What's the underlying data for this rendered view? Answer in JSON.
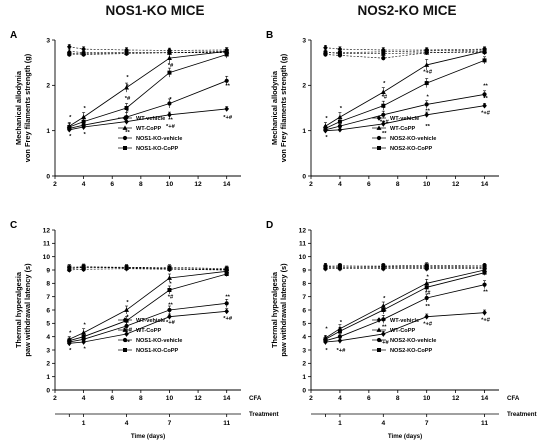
{
  "headers": {
    "left": "NOS1-KO MICE",
    "right": "NOS2-KO MICE"
  },
  "chart_data": [
    {
      "panel": "A",
      "type": "line",
      "ylabel": [
        "Mechanical allodynia",
        "von Frey filaments strength (g)"
      ],
      "xlim": [
        2,
        15
      ],
      "ylim": [
        0,
        3
      ],
      "xticks": [
        2,
        4,
        6,
        8,
        10,
        12,
        14
      ],
      "yticks": [
        0,
        1,
        2,
        3
      ],
      "x": [
        3,
        4,
        7,
        10,
        14
      ],
      "series": [
        {
          "name": "WT-vehicle",
          "marker": "diamond",
          "dashed": true,
          "values": [
            2.85,
            2.8,
            2.78,
            2.77,
            2.78
          ],
          "err": [
            0.05,
            0.05,
            0.05,
            0.05,
            0.05
          ]
        },
        {
          "name": "WT-CoPP",
          "marker": "triangle",
          "dashed": true,
          "values": [
            2.75,
            2.72,
            2.72,
            2.72,
            2.74
          ],
          "err": [
            0.05,
            0.05,
            0.05,
            0.05,
            0.05
          ]
        },
        {
          "name": "NOS1-KO-vehicle",
          "marker": "circle",
          "dashed": true,
          "values": [
            2.68,
            2.68,
            2.7,
            2.72,
            2.72
          ],
          "err": [
            0.05,
            0.05,
            0.05,
            0.05,
            0.05
          ]
        },
        {
          "name": "NOS1-KO-CoPP",
          "marker": "square",
          "dashed": true,
          "values": [
            2.7,
            2.7,
            2.72,
            2.72,
            2.75
          ],
          "err": [
            0.05,
            0.05,
            0.05,
            0.05,
            0.05
          ]
        },
        {
          "name": "",
          "marker": "triangle",
          "dashed": false,
          "values": [
            1.1,
            1.3,
            1.95,
            2.6,
            2.75
          ],
          "err": [
            0.08,
            0.1,
            0.1,
            0.12,
            0.08
          ]
        },
        {
          "name": "",
          "marker": "square",
          "dashed": false,
          "values": [
            1.08,
            1.2,
            1.5,
            2.28,
            2.68
          ],
          "err": [
            0.08,
            0.1,
            0.1,
            0.1,
            0.08
          ]
        },
        {
          "name": "",
          "marker": "circle",
          "dashed": false,
          "values": [
            1.05,
            1.12,
            1.3,
            1.6,
            2.1
          ],
          "err": [
            0.06,
            0.08,
            0.1,
            0.1,
            0.1
          ]
        },
        {
          "name": "",
          "marker": "diamond",
          "dashed": false,
          "values": [
            1.02,
            1.08,
            1.2,
            1.35,
            1.48
          ],
          "err": [
            0.05,
            0.06,
            0.06,
            0.06,
            0.05
          ]
        }
      ],
      "annotations": [
        {
          "x": 3,
          "y": 1.3,
          "text": "*"
        },
        {
          "x": 3,
          "y": 0.88,
          "text": "*"
        },
        {
          "x": 4,
          "y": 1.5,
          "text": "*"
        },
        {
          "x": 4,
          "y": 0.93,
          "text": "*"
        },
        {
          "x": 7,
          "y": 2.18,
          "text": "*"
        },
        {
          "x": 7,
          "y": 1.98,
          "text": "*"
        },
        {
          "x": 7,
          "y": 1.72,
          "text": "*#"
        },
        {
          "x": 7,
          "y": 1.42,
          "text": "*"
        },
        {
          "x": 7,
          "y": 0.97,
          "text": "**"
        },
        {
          "x": 10,
          "y": 2.45,
          "text": "*#"
        },
        {
          "x": 10,
          "y": 1.7,
          "text": "*"
        },
        {
          "x": 10,
          "y": 1.25,
          "text": "**"
        },
        {
          "x": 10,
          "y": 1.1,
          "text": "*+#"
        },
        {
          "x": 14,
          "y": 2.0,
          "text": "**"
        },
        {
          "x": 14,
          "y": 1.3,
          "text": "*+#"
        }
      ]
    },
    {
      "panel": "B",
      "type": "line",
      "ylabel": [
        "Mechanical allodynia",
        "von Frey filaments strength (g)"
      ],
      "xlim": [
        2,
        15
      ],
      "ylim": [
        0,
        3
      ],
      "xticks": [
        2,
        4,
        6,
        8,
        10,
        12,
        14
      ],
      "yticks": [
        0,
        1,
        2,
        3
      ],
      "x": [
        3,
        4,
        7,
        10,
        14
      ],
      "series": [
        {
          "name": "WT-vehicle",
          "marker": "diamond",
          "dashed": true,
          "values": [
            2.83,
            2.8,
            2.78,
            2.78,
            2.8
          ],
          "err": [
            0.05,
            0.05,
            0.05,
            0.05,
            0.05
          ]
        },
        {
          "name": "WT-CoPP",
          "marker": "triangle",
          "dashed": true,
          "values": [
            2.73,
            2.7,
            2.7,
            2.72,
            2.75
          ],
          "err": [
            0.05,
            0.05,
            0.05,
            0.05,
            0.05
          ]
        },
        {
          "name": "NOS2-KO-vehicle",
          "marker": "circle",
          "dashed": true,
          "values": [
            2.68,
            2.66,
            2.6,
            2.72,
            2.73
          ],
          "err": [
            0.05,
            0.05,
            0.05,
            0.05,
            0.05
          ]
        },
        {
          "name": "NOS2-KO-CoPP",
          "marker": "square",
          "dashed": true,
          "values": [
            2.72,
            2.72,
            2.74,
            2.76,
            2.78
          ],
          "err": [
            0.05,
            0.05,
            0.05,
            0.05,
            0.05
          ]
        },
        {
          "name": "",
          "marker": "triangle",
          "dashed": false,
          "values": [
            1.1,
            1.3,
            1.85,
            2.45,
            2.75
          ],
          "err": [
            0.08,
            0.1,
            0.1,
            0.12,
            0.08
          ]
        },
        {
          "name": "",
          "marker": "square",
          "dashed": false,
          "values": [
            1.05,
            1.2,
            1.55,
            2.05,
            2.55
          ],
          "err": [
            0.06,
            0.08,
            0.1,
            0.1,
            0.08
          ]
        },
        {
          "name": "",
          "marker": "circle",
          "dashed": false,
          "values": [
            1.02,
            1.1,
            1.35,
            1.58,
            1.8
          ],
          "err": [
            0.05,
            0.06,
            0.08,
            0.08,
            0.08
          ]
        },
        {
          "name": "",
          "marker": "diamond",
          "dashed": false,
          "values": [
            1.0,
            1.02,
            1.15,
            1.35,
            1.55
          ],
          "err": [
            0.05,
            0.05,
            0.06,
            0.06,
            0.05
          ]
        }
      ],
      "annotations": [
        {
          "x": 3,
          "y": 1.28,
          "text": "*"
        },
        {
          "x": 3,
          "y": 0.86,
          "text": "*"
        },
        {
          "x": 4,
          "y": 1.5,
          "text": "*"
        },
        {
          "x": 7,
          "y": 2.05,
          "text": "*"
        },
        {
          "x": 7,
          "y": 1.75,
          "text": "*#"
        },
        {
          "x": 7,
          "y": 1.5,
          "text": "*"
        },
        {
          "x": 7,
          "y": 1.2,
          "text": "*+#"
        },
        {
          "x": 7,
          "y": 0.95,
          "text": "**"
        },
        {
          "x": 10,
          "y": 2.3,
          "text": "*+#"
        },
        {
          "x": 10,
          "y": 1.75,
          "text": "*"
        },
        {
          "x": 10,
          "y": 1.45,
          "text": "**"
        },
        {
          "x": 10,
          "y": 1.1,
          "text": "**"
        },
        {
          "x": 14,
          "y": 2.0,
          "text": "**"
        },
        {
          "x": 14,
          "y": 1.72,
          "text": "**"
        },
        {
          "x": 14,
          "y": 1.4,
          "text": "*+#"
        }
      ]
    },
    {
      "panel": "C",
      "type": "line",
      "ylabel": [
        "Thermal hyperalgesia",
        "paw withdrawal latency (s)"
      ],
      "xlim": [
        2,
        15
      ],
      "ylim": [
        0,
        12
      ],
      "xticks": [
        2,
        4,
        6,
        8,
        10,
        12,
        14
      ],
      "yticks": [
        0,
        1,
        2,
        3,
        4,
        5,
        6,
        7,
        8,
        9,
        10,
        11,
        12
      ],
      "x": [
        3,
        4,
        7,
        10,
        14
      ],
      "series": [
        {
          "name": "WT-vehicle",
          "marker": "diamond",
          "dashed": true,
          "values": [
            9.2,
            9.2,
            9.2,
            9.1,
            9.0
          ],
          "err": [
            0.2,
            0.2,
            0.2,
            0.2,
            0.2
          ]
        },
        {
          "name": "WT-CoPP",
          "marker": "triangle",
          "dashed": true,
          "values": [
            9.1,
            9.2,
            9.15,
            9.1,
            9.05
          ],
          "err": [
            0.2,
            0.2,
            0.2,
            0.2,
            0.2
          ]
        },
        {
          "name": "NOS1-KO-vehicle",
          "marker": "circle",
          "dashed": true,
          "values": [
            9.0,
            9.05,
            9.1,
            9.05,
            9.0
          ],
          "err": [
            0.2,
            0.2,
            0.2,
            0.2,
            0.2
          ]
        },
        {
          "name": "NOS1-KO-CoPP",
          "marker": "square",
          "dashed": true,
          "values": [
            9.2,
            9.25,
            9.2,
            9.2,
            9.1
          ],
          "err": [
            0.2,
            0.2,
            0.2,
            0.2,
            0.2
          ]
        },
        {
          "name": "",
          "marker": "triangle",
          "dashed": false,
          "values": [
            3.8,
            4.3,
            6.0,
            8.4,
            8.9
          ],
          "err": [
            0.2,
            0.3,
            0.3,
            0.3,
            0.2
          ]
        },
        {
          "name": "",
          "marker": "square",
          "dashed": false,
          "values": [
            3.7,
            4.0,
            5.2,
            7.5,
            8.7
          ],
          "err": [
            0.2,
            0.3,
            0.3,
            0.3,
            0.2
          ]
        },
        {
          "name": "",
          "marker": "circle",
          "dashed": false,
          "values": [
            3.6,
            3.8,
            4.8,
            6.0,
            6.5
          ],
          "err": [
            0.2,
            0.2,
            0.3,
            0.3,
            0.3
          ]
        },
        {
          "name": "",
          "marker": "diamond",
          "dashed": false,
          "values": [
            3.5,
            3.6,
            4.2,
            5.5,
            5.9
          ],
          "err": [
            0.2,
            0.2,
            0.2,
            0.2,
            0.2
          ]
        }
      ],
      "annotations": [
        {
          "x": 3,
          "y": 4.3,
          "text": "*"
        },
        {
          "x": 3,
          "y": 3.0,
          "text": "*"
        },
        {
          "x": 4,
          "y": 4.9,
          "text": "*"
        },
        {
          "x": 4,
          "y": 3.1,
          "text": "*"
        },
        {
          "x": 7,
          "y": 6.6,
          "text": "*"
        },
        {
          "x": 7,
          "y": 5.5,
          "text": "*"
        },
        {
          "x": 7,
          "y": 4.55,
          "text": "*+#"
        },
        {
          "x": 7,
          "y": 3.6,
          "text": "**"
        },
        {
          "x": 10,
          "y": 8.0,
          "text": "*"
        },
        {
          "x": 10,
          "y": 7.0,
          "text": "*#"
        },
        {
          "x": 10,
          "y": 6.4,
          "text": "**"
        },
        {
          "x": 10,
          "y": 5.1,
          "text": "*+#"
        },
        {
          "x": 14,
          "y": 7.0,
          "text": "**"
        },
        {
          "x": 14,
          "y": 5.4,
          "text": "*+#"
        }
      ]
    },
    {
      "panel": "D",
      "type": "line",
      "ylabel": [
        "Thermal hyperalgesia",
        "paw withdrawal latency (s)"
      ],
      "xlim": [
        2,
        15
      ],
      "ylim": [
        0,
        12
      ],
      "xticks": [
        2,
        4,
        6,
        8,
        10,
        12,
        14
      ],
      "yticks": [
        0,
        1,
        2,
        3,
        4,
        5,
        6,
        7,
        8,
        9,
        10,
        11,
        12
      ],
      "x": [
        3,
        4,
        7,
        10,
        14
      ],
      "series": [
        {
          "name": "WT-vehicle",
          "marker": "diamond",
          "dashed": true,
          "values": [
            9.3,
            9.3,
            9.25,
            9.25,
            9.3
          ],
          "err": [
            0.2,
            0.2,
            0.2,
            0.2,
            0.2
          ]
        },
        {
          "name": "WT-CoPP",
          "marker": "triangle",
          "dashed": true,
          "values": [
            9.2,
            9.2,
            9.2,
            9.2,
            9.2
          ],
          "err": [
            0.2,
            0.2,
            0.2,
            0.2,
            0.2
          ]
        },
        {
          "name": "NOS2-KO-vehicle",
          "marker": "circle",
          "dashed": true,
          "values": [
            9.1,
            9.1,
            9.1,
            9.1,
            9.1
          ],
          "err": [
            0.2,
            0.2,
            0.2,
            0.2,
            0.2
          ]
        },
        {
          "name": "NOS2-KO-CoPP",
          "marker": "square",
          "dashed": true,
          "values": [
            9.25,
            9.3,
            9.3,
            9.35,
            9.3
          ],
          "err": [
            0.2,
            0.2,
            0.2,
            0.2,
            0.2
          ]
        },
        {
          "name": "",
          "marker": "triangle",
          "dashed": false,
          "values": [
            3.9,
            4.6,
            6.3,
            8.0,
            9.0
          ],
          "err": [
            0.2,
            0.3,
            0.3,
            0.3,
            0.2
          ]
        },
        {
          "name": "",
          "marker": "square",
          "dashed": false,
          "values": [
            3.8,
            4.4,
            6.0,
            7.7,
            8.8
          ],
          "err": [
            0.2,
            0.3,
            0.3,
            0.3,
            0.2
          ]
        },
        {
          "name": "",
          "marker": "circle",
          "dashed": false,
          "values": [
            3.7,
            4.0,
            5.3,
            6.9,
            7.9
          ],
          "err": [
            0.2,
            0.2,
            0.3,
            0.3,
            0.3
          ]
        },
        {
          "name": "",
          "marker": "diamond",
          "dashed": false,
          "values": [
            3.6,
            3.7,
            4.2,
            5.5,
            5.8
          ],
          "err": [
            0.2,
            0.2,
            0.2,
            0.2,
            0.2
          ]
        }
      ],
      "annotations": [
        {
          "x": 3,
          "y": 4.6,
          "text": "*"
        },
        {
          "x": 3,
          "y": 3.0,
          "text": "*"
        },
        {
          "x": 4,
          "y": 5.1,
          "text": "*"
        },
        {
          "x": 4,
          "y": 3.0,
          "text": "*+#"
        },
        {
          "x": 7,
          "y": 6.9,
          "text": "*"
        },
        {
          "x": 7,
          "y": 5.9,
          "text": "**"
        },
        {
          "x": 7,
          "y": 4.75,
          "text": "**"
        },
        {
          "x": 7,
          "y": 3.6,
          "text": "*+#"
        },
        {
          "x": 10,
          "y": 8.5,
          "text": "*"
        },
        {
          "x": 10,
          "y": 7.3,
          "text": "*#"
        },
        {
          "x": 10,
          "y": 6.3,
          "text": "**"
        },
        {
          "x": 10,
          "y": 5.0,
          "text": "*+#"
        },
        {
          "x": 14,
          "y": 7.4,
          "text": "**"
        },
        {
          "x": 14,
          "y": 5.3,
          "text": "*+#"
        }
      ]
    }
  ],
  "footer": {
    "cfa_label": "CFA",
    "treatment_label": "Treatment",
    "treatment_ticks": [
      {
        "x": 3,
        "label": ""
      },
      {
        "x": 4,
        "label": "1"
      },
      {
        "x": 7,
        "label": "4"
      },
      {
        "x": 10,
        "label": "7"
      },
      {
        "x": 14,
        "label": "11"
      }
    ],
    "xlabel": "Time (days)"
  }
}
